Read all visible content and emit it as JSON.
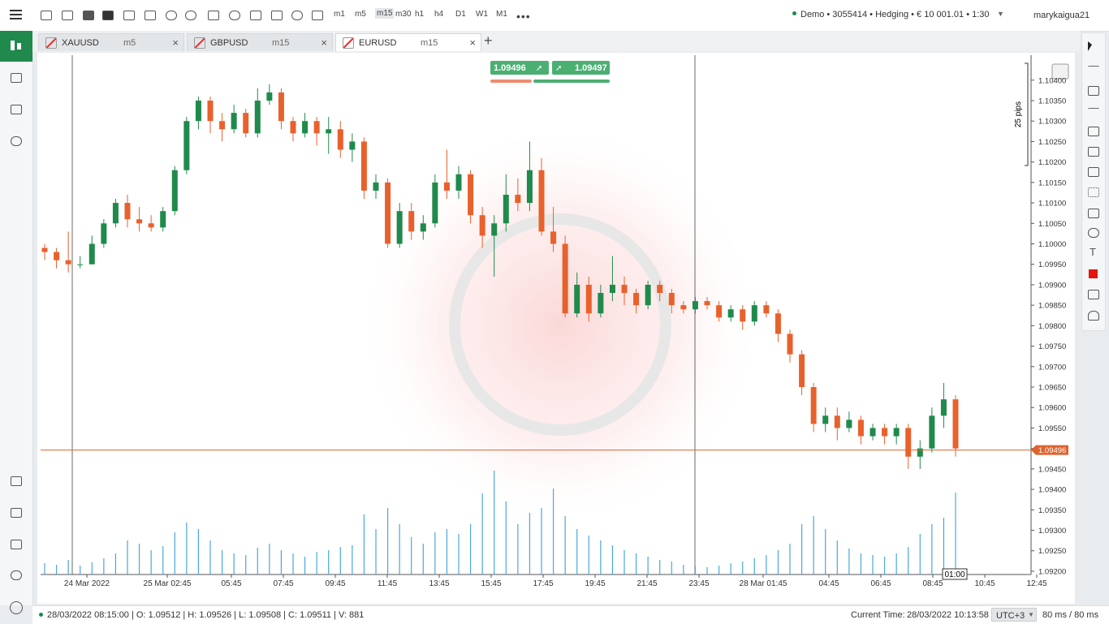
{
  "header": {
    "timeframes": [
      "m1",
      "m5",
      "m15",
      "m30",
      "h1",
      "h4",
      "D1",
      "W1",
      "M1"
    ],
    "account": "Demo • 3055414 • Hedging • € 10 001.01 • 1:30",
    "user": "marykaigua21"
  },
  "tabs": [
    {
      "symbol": "XAUUSD",
      "timeframe": "m5"
    },
    {
      "symbol": "GBPUSD",
      "timeframe": "m15"
    },
    {
      "symbol": "EURUSD",
      "timeframe": "m15"
    }
  ],
  "chart_data": {
    "type": "candlestick",
    "quote": {
      "sell": "1.09496",
      "buy": "1.09497"
    },
    "pips_label": "25 pips",
    "up_color": "#1f8a4c",
    "down_color": "#e8612c",
    "volume_color": "#4aa8d8",
    "candles": [
      [
        1.0999,
        1.1,
        1.0996,
        1.0998,
        140
      ],
      [
        1.0998,
        1.0999,
        1.0994,
        1.0996,
        120
      ],
      [
        1.0996,
        1.1003,
        1.0993,
        1.0995,
        180
      ],
      [
        1.0995,
        1.0997,
        1.0994,
        1.0995,
        110
      ],
      [
        1.0995,
        1.1002,
        1.0995,
        1.1,
        150
      ],
      [
        1.1,
        1.1006,
        1.0999,
        1.1005,
        200
      ],
      [
        1.1005,
        1.1011,
        1.1004,
        1.101,
        260
      ],
      [
        1.101,
        1.1012,
        1.1004,
        1.1006,
        420
      ],
      [
        1.1006,
        1.1009,
        1.1003,
        1.1005,
        380
      ],
      [
        1.1005,
        1.1007,
        1.1003,
        1.1004,
        300
      ],
      [
        1.1004,
        1.1009,
        1.1003,
        1.1008,
        350
      ],
      [
        1.1008,
        1.1019,
        1.1007,
        1.1018,
        520
      ],
      [
        1.1018,
        1.1031,
        1.1017,
        1.103,
        640
      ],
      [
        1.103,
        1.1036,
        1.1028,
        1.1035,
        560
      ],
      [
        1.1035,
        1.1036,
        1.1027,
        1.103,
        420
      ],
      [
        1.103,
        1.1032,
        1.1025,
        1.1028,
        300
      ],
      [
        1.1028,
        1.1034,
        1.1027,
        1.1032,
        260
      ],
      [
        1.1032,
        1.1033,
        1.1026,
        1.1027,
        240
      ],
      [
        1.1027,
        1.1038,
        1.1026,
        1.1035,
        330
      ],
      [
        1.1035,
        1.1039,
        1.1034,
        1.1037,
        380
      ],
      [
        1.1037,
        1.1038,
        1.1028,
        1.103,
        300
      ],
      [
        1.103,
        1.1031,
        1.1025,
        1.1027,
        260
      ],
      [
        1.1027,
        1.1032,
        1.1026,
        1.103,
        220
      ],
      [
        1.103,
        1.1031,
        1.1024,
        1.1027,
        280
      ],
      [
        1.1027,
        1.1031,
        1.1022,
        1.1028,
        300
      ],
      [
        1.1028,
        1.103,
        1.1021,
        1.1023,
        340
      ],
      [
        1.1023,
        1.1027,
        1.102,
        1.1025,
        360
      ],
      [
        1.1025,
        1.1026,
        1.1011,
        1.1013,
        740
      ],
      [
        1.1013,
        1.1017,
        1.1011,
        1.1015,
        560
      ],
      [
        1.1015,
        1.1016,
        1.0999,
        1.1,
        820
      ],
      [
        1.1,
        1.101,
        1.0999,
        1.1008,
        620
      ],
      [
        1.1008,
        1.101,
        1.1001,
        1.1003,
        460
      ],
      [
        1.1003,
        1.1007,
        1.1001,
        1.1005,
        380
      ],
      [
        1.1005,
        1.1017,
        1.1004,
        1.1015,
        520
      ],
      [
        1.1015,
        1.1023,
        1.1011,
        1.1013,
        560
      ],
      [
        1.1013,
        1.1019,
        1.1011,
        1.1017,
        500
      ],
      [
        1.1017,
        1.1018,
        1.1005,
        1.1007,
        620
      ],
      [
        1.1007,
        1.1009,
        1.0999,
        1.1002,
        1000
      ],
      [
        1.1002,
        1.1007,
        1.0992,
        1.1005,
        1280
      ],
      [
        1.1005,
        1.1017,
        1.1003,
        1.1012,
        900
      ],
      [
        1.1012,
        1.1016,
        1.1008,
        1.101,
        620
      ],
      [
        1.101,
        1.1025,
        1.1008,
        1.1018,
        760
      ],
      [
        1.1018,
        1.1021,
        1.1002,
        1.1003,
        820
      ],
      [
        1.1003,
        1.1009,
        1.0998,
        1.1,
        1060
      ],
      [
        1.1,
        1.1002,
        1.0982,
        1.0983,
        720
      ],
      [
        1.0983,
        1.0993,
        1.0982,
        1.099,
        560
      ],
      [
        1.099,
        1.0992,
        1.0981,
        1.0983,
        480
      ],
      [
        1.0983,
        1.099,
        1.0982,
        1.0988,
        420
      ],
      [
        1.0988,
        1.0997,
        1.0986,
        1.099,
        360
      ],
      [
        1.099,
        1.0992,
        1.0985,
        1.0988,
        300
      ],
      [
        1.0988,
        1.0989,
        1.0983,
        1.0985,
        260
      ],
      [
        1.0985,
        1.0991,
        1.0984,
        1.099,
        220
      ],
      [
        1.099,
        1.0991,
        1.0986,
        1.0988,
        180
      ],
      [
        1.0988,
        1.0989,
        1.0983,
        1.0985,
        160
      ],
      [
        1.0985,
        1.0986,
        1.0983,
        1.0984,
        120
      ],
      [
        1.0984,
        1.0987,
        1.0983,
        1.0986,
        100
      ],
      [
        1.0986,
        1.0987,
        1.0984,
        1.0985,
        90
      ],
      [
        1.0985,
        1.0986,
        1.0981,
        1.0982,
        110
      ],
      [
        1.0982,
        1.0985,
        1.0981,
        1.0984,
        140
      ],
      [
        1.0984,
        1.0985,
        1.0979,
        1.0981,
        160
      ],
      [
        1.0981,
        1.0986,
        1.098,
        1.0985,
        200
      ],
      [
        1.0985,
        1.0986,
        1.0982,
        1.0983,
        240
      ],
      [
        1.0983,
        1.0984,
        1.0976,
        1.0978,
        300
      ],
      [
        1.0978,
        1.0979,
        1.0971,
        1.0973,
        380
      ],
      [
        1.0973,
        1.0974,
        1.0963,
        1.0965,
        620
      ],
      [
        1.0965,
        1.0966,
        1.0954,
        1.0956,
        720
      ],
      [
        1.0956,
        1.096,
        1.0954,
        1.0958,
        560
      ],
      [
        1.0958,
        1.096,
        1.0952,
        1.0955,
        420
      ],
      [
        1.0955,
        1.0959,
        1.0954,
        1.0957,
        320
      ],
      [
        1.0957,
        1.0958,
        1.0951,
        1.0953,
        260
      ],
      [
        1.0953,
        1.0956,
        1.0952,
        1.0955,
        240
      ],
      [
        1.0955,
        1.0956,
        1.0951,
        1.0953,
        220
      ],
      [
        1.0953,
        1.0956,
        1.0951,
        1.0955,
        260
      ],
      [
        1.0955,
        1.0956,
        1.0945,
        1.0948,
        340
      ],
      [
        1.0948,
        1.0952,
        1.0945,
        1.095,
        500
      ],
      [
        1.095,
        1.096,
        1.0949,
        1.0958,
        620
      ],
      [
        1.0958,
        1.0966,
        1.0955,
        1.0962,
        700
      ],
      [
        1.0962,
        1.0963,
        1.0948,
        1.095,
        1010
      ]
    ],
    "ylim": [
      1.09192,
      1.10461
    ],
    "yticks": [
      {
        "value": 1.092,
        "label": "1.09200"
      },
      {
        "value": 1.0925,
        "label": "1.09250"
      },
      {
        "value": 1.093,
        "label": "1.09300"
      },
      {
        "value": 1.0935,
        "label": "1.09350"
      },
      {
        "value": 1.094,
        "label": "1.09400"
      },
      {
        "value": 1.0945,
        "label": "1.09450"
      },
      {
        "value": 1.095,
        "label": "1.09500"
      },
      {
        "value": 1.0955,
        "label": "1.09550"
      },
      {
        "value": 1.096,
        "label": "1.09600"
      },
      {
        "value": 1.0965,
        "label": "1.09650"
      },
      {
        "value": 1.097,
        "label": "1.09700"
      },
      {
        "value": 1.0975,
        "label": "1.09750"
      },
      {
        "value": 1.098,
        "label": "1.09800"
      },
      {
        "value": 1.0985,
        "label": "1.09850"
      },
      {
        "value": 1.099,
        "label": "1.09900"
      },
      {
        "value": 1.0995,
        "label": "1.09950"
      },
      {
        "value": 1.1,
        "label": "1.10000"
      },
      {
        "value": 1.1005,
        "label": "1.10050"
      },
      {
        "value": 1.101,
        "label": "1.10100"
      },
      {
        "value": 1.1015,
        "label": "1.10150"
      },
      {
        "value": 1.102,
        "label": "1.10200"
      },
      {
        "value": 1.1025,
        "label": "1.10250"
      },
      {
        "value": 1.103,
        "label": "1.10300"
      },
      {
        "value": 1.1035,
        "label": "1.10350"
      },
      {
        "value": 1.104,
        "label": "1.10400"
      }
    ],
    "x_labels": [
      "24 Mar 2022",
      "25 Mar 02:45",
      "05:45",
      "07:45",
      "09:45",
      "11:45",
      "13:45",
      "15:45",
      "17:45",
      "19:45",
      "21:45",
      "23:45",
      "28 Mar 01:45",
      "04:45",
      "06:45",
      "08:45",
      "10:45",
      "12:45"
    ],
    "last_price": {
      "value": 1.09496,
      "label": "1.09496"
    },
    "crosshair_time": "01:00"
  },
  "status": {
    "bar": "28/03/2022 08:15:00 | O: 1.09512 | H: 1.09526 | L: 1.09508 | C: 1.09511 | V: 881",
    "time_label": "Current Time:",
    "time": "28/03/2022 10:13:58",
    "timezone": "UTC+3",
    "latency": "80 ms / 80 ms"
  }
}
